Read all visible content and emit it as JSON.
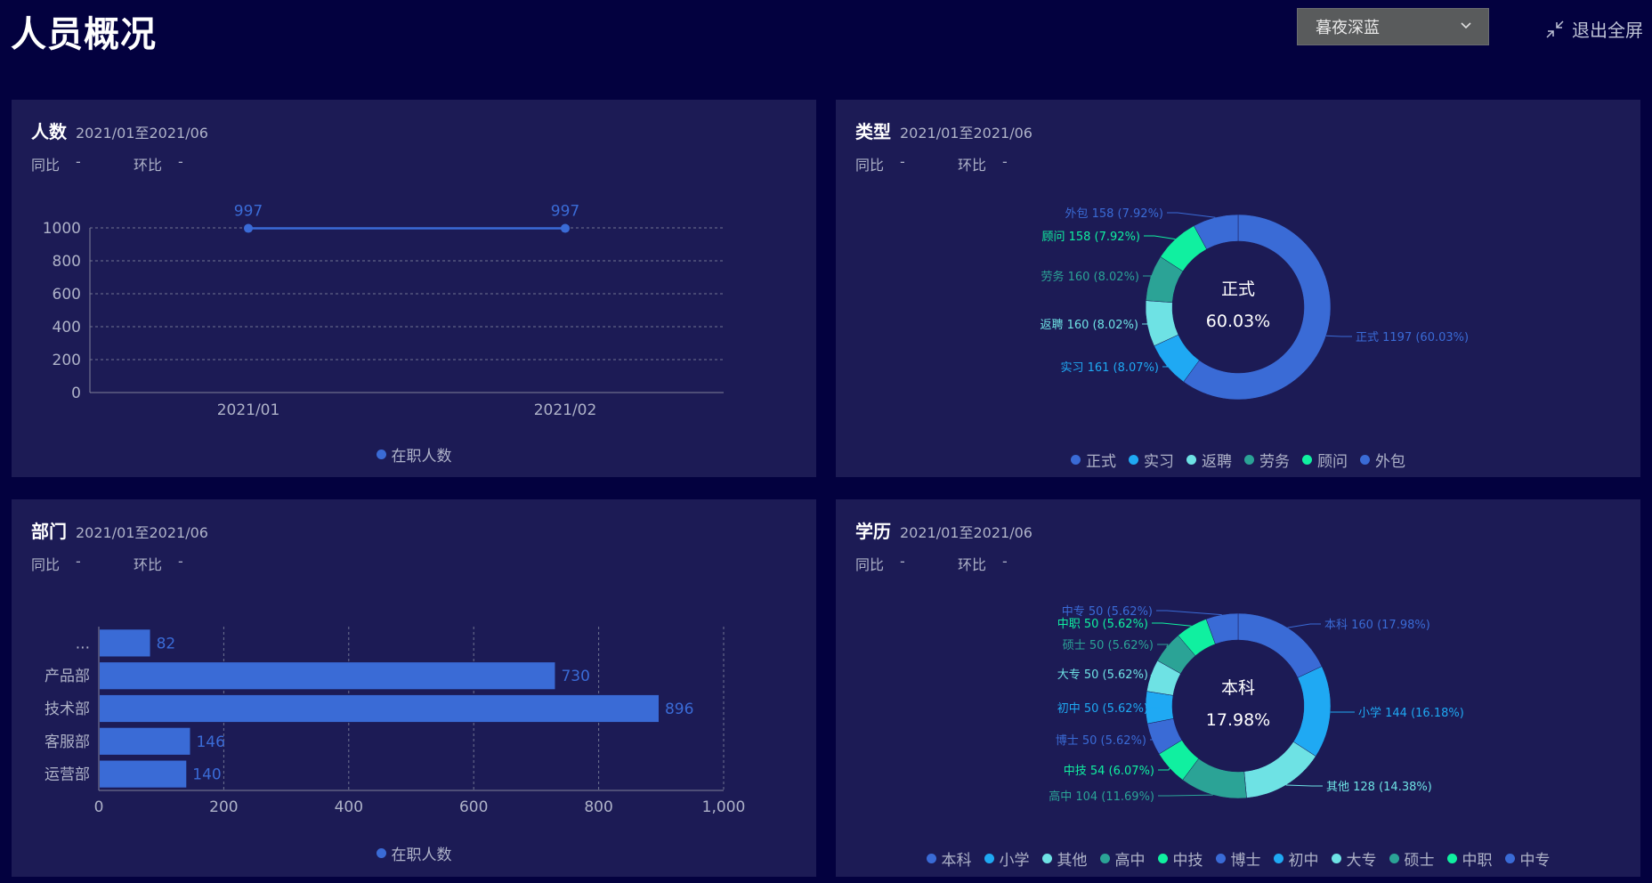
{
  "page": {
    "title": "人员概况",
    "theme_select": {
      "value": "暮夜深蓝",
      "icon": "chevron-down-icon"
    },
    "exit_fullscreen": {
      "label": "退出全屏",
      "icon": "exit-fullscreen-icon"
    }
  },
  "colors": {
    "background": "#03013f",
    "card": "#1c1b55",
    "blue": "#3a6bd6",
    "sky": "#1fa9f3",
    "cyan": "#6ee2e4",
    "teal": "#2ba396",
    "green": "#10f0a0"
  },
  "cards": {
    "headcount": {
      "title": "人数",
      "range": "2021/01至2021/06",
      "yoy_label": "同比",
      "yoy_value": "-",
      "mom_label": "环比",
      "mom_value": "-"
    },
    "type": {
      "title": "类型",
      "range": "2021/01至2021/06",
      "yoy_label": "同比",
      "yoy_value": "-",
      "mom_label": "环比",
      "mom_value": "-"
    },
    "department": {
      "title": "部门",
      "range": "2021/01至2021/06",
      "yoy_label": "同比",
      "yoy_value": "-",
      "mom_label": "环比",
      "mom_value": "-"
    },
    "education": {
      "title": "学历",
      "range": "2021/01至2021/06",
      "yoy_label": "同比",
      "yoy_value": "-",
      "mom_label": "环比",
      "mom_value": "-"
    }
  },
  "chart_data": [
    {
      "id": "headcount",
      "type": "line",
      "x": [
        "2021/01",
        "2021/02"
      ],
      "series": [
        {
          "name": "在职人数",
          "values": [
            997,
            997
          ],
          "color": "#3a6bd6"
        }
      ],
      "ylim": [
        0,
        1000
      ],
      "yticks": [
        "0",
        "200",
        "400",
        "600",
        "800",
        "1000"
      ],
      "grid": true,
      "legend": "bottom"
    },
    {
      "id": "type",
      "type": "pie",
      "center_label": "正式",
      "center_value": "60.03%",
      "slices": [
        {
          "name": "正式",
          "value": 1197,
          "label": "正式 1197 (60.03%)",
          "color": "#3a6bd6"
        },
        {
          "name": "实习",
          "value": 161,
          "label": "实习 161 (8.07%)",
          "color": "#1fa9f3"
        },
        {
          "name": "返聘",
          "value": 160,
          "label": "返聘 160 (8.02%)",
          "color": "#6ee2e4"
        },
        {
          "name": "劳务",
          "value": 160,
          "label": "劳务 160 (8.02%)",
          "color": "#2ba396"
        },
        {
          "name": "顾问",
          "value": 158,
          "label": "顾问 158 (7.92%)",
          "color": "#10f0a0"
        },
        {
          "name": "外包",
          "value": 158,
          "label": "外包 158 (7.92%)",
          "color": "#3a6bd6"
        }
      ],
      "legend": "bottom"
    },
    {
      "id": "department",
      "type": "bar",
      "orientation": "horizontal",
      "categories": [
        "...",
        "产品部",
        "技术部",
        "客服部",
        "运营部"
      ],
      "series": [
        {
          "name": "在职人数",
          "values": [
            82,
            730,
            896,
            146,
            140
          ],
          "color": "#3a6bd6"
        }
      ],
      "xlim": [
        0,
        1000
      ],
      "xticks": [
        "0",
        "200",
        "400",
        "600",
        "800",
        "1,000"
      ],
      "grid": true,
      "legend": "bottom"
    },
    {
      "id": "education",
      "type": "pie",
      "center_label": "本科",
      "center_value": "17.98%",
      "slices": [
        {
          "name": "本科",
          "value": 160,
          "label": "本科 160 (17.98%)",
          "color": "#3a6bd6"
        },
        {
          "name": "小学",
          "value": 144,
          "label": "小学 144 (16.18%)",
          "color": "#1fa9f3"
        },
        {
          "name": "其他",
          "value": 128,
          "label": "其他 128 (14.38%)",
          "color": "#6ee2e4"
        },
        {
          "name": "高中",
          "value": 104,
          "label": "高中 104 (11.69%)",
          "color": "#2ba396"
        },
        {
          "name": "中技",
          "value": 54,
          "label": "中技 54 (6.07%)",
          "color": "#10f0a0"
        },
        {
          "name": "博士",
          "value": 50,
          "label": "博士 50 (5.62%)",
          "color": "#3a6bd6"
        },
        {
          "name": "初中",
          "value": 50,
          "label": "初中 50 (5.62%)",
          "color": "#1fa9f3"
        },
        {
          "name": "大专",
          "value": 50,
          "label": "大专 50 (5.62%)",
          "color": "#6ee2e4"
        },
        {
          "name": "硕士",
          "value": 50,
          "label": "硕士 50 (5.62%)",
          "color": "#2ba396"
        },
        {
          "name": "中职",
          "value": 50,
          "label": "中职 50 (5.62%)",
          "color": "#10f0a0"
        },
        {
          "name": "中专",
          "value": 50,
          "label": "中专 50 (5.62%)",
          "color": "#3a6bd6"
        }
      ],
      "legend": "bottom"
    }
  ]
}
